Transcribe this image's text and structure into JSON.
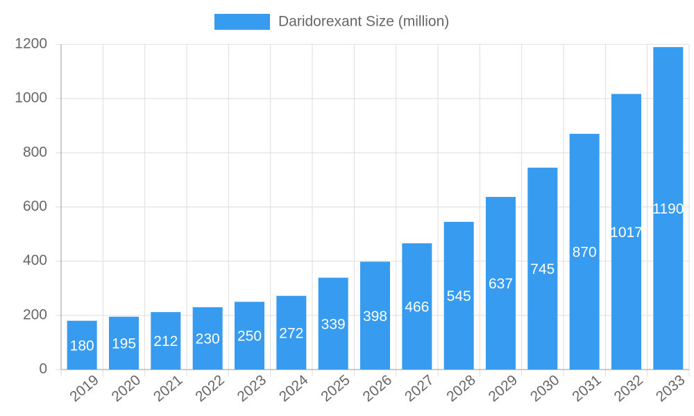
{
  "chart_data": {
    "type": "bar",
    "series": [
      {
        "name": "Daridorexant Size (million)",
        "color": "#379bf0",
        "values": [
          180,
          195,
          212,
          230,
          250,
          272,
          339,
          398,
          466,
          545,
          637,
          745,
          870,
          1017,
          1190
        ]
      }
    ],
    "categories": [
      "2019",
      "2020",
      "2021",
      "2022",
      "2023",
      "2024",
      "2025",
      "2026",
      "2027",
      "2028",
      "2029",
      "2030",
      "2031",
      "2032",
      "2033"
    ],
    "ylim": [
      0,
      1200
    ],
    "yticks": [
      0,
      200,
      400,
      600,
      800,
      1000,
      1200
    ],
    "grid": true,
    "legend": "top"
  }
}
